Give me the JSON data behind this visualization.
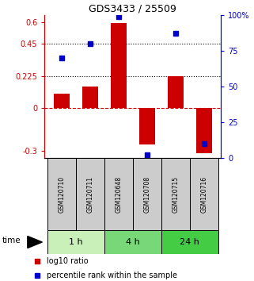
{
  "title": "GDS3433 / 25509",
  "samples": [
    "GSM120710",
    "GSM120711",
    "GSM120648",
    "GSM120708",
    "GSM120715",
    "GSM120716"
  ],
  "log10_ratio": [
    0.1,
    0.15,
    0.595,
    -0.255,
    0.225,
    -0.315
  ],
  "percentile_rank": [
    70,
    80,
    99,
    2,
    87,
    10
  ],
  "groups": [
    {
      "label": "1 h",
      "indices": [
        0,
        1
      ],
      "color": "#c8f0b8"
    },
    {
      "label": "4 h",
      "indices": [
        2,
        3
      ],
      "color": "#78d878"
    },
    {
      "label": "24 h",
      "indices": [
        4,
        5
      ],
      "color": "#44cc44"
    }
  ],
  "ylim_left": [
    -0.35,
    0.65
  ],
  "ylim_right": [
    0,
    100
  ],
  "yticks_left": [
    -0.3,
    0,
    0.225,
    0.45,
    0.6
  ],
  "yticks_right": [
    0,
    25,
    50,
    75,
    100
  ],
  "hlines": [
    0.45,
    0.225
  ],
  "bar_color": "#cc0000",
  "dot_color": "#0000cc",
  "bar_width": 0.55,
  "legend_ratio_label": "log10 ratio",
  "legend_pct_label": "percentile rank within the sample",
  "bg_color": "#ffffff",
  "sample_box_color": "#cccccc"
}
